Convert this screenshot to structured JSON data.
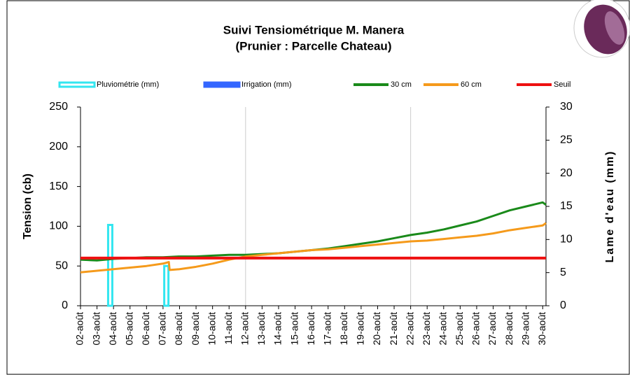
{
  "chart_data": {
    "type": "line",
    "title": "Suivi Tensiométrique M. Manera",
    "subtitle": "(Prunier : Parcelle Chateau)",
    "y_label": "Tension (cb)",
    "y2_label": "Lame d'eau (mm)",
    "xlim": [
      2,
      30.2
    ],
    "xticks": [
      {
        "value": 2,
        "label": "02-août"
      },
      {
        "value": 3,
        "label": "03-août"
      },
      {
        "value": 4,
        "label": "04-août"
      },
      {
        "value": 5,
        "label": "05-août"
      },
      {
        "value": 6,
        "label": "06-août"
      },
      {
        "value": 7,
        "label": "07-août"
      },
      {
        "value": 8,
        "label": "08-août"
      },
      {
        "value": 9,
        "label": "09-août"
      },
      {
        "value": 10,
        "label": "10-août"
      },
      {
        "value": 11,
        "label": "11-août"
      },
      {
        "value": 12,
        "label": "12-août"
      },
      {
        "value": 13,
        "label": "13-août"
      },
      {
        "value": 14,
        "label": "14-août"
      },
      {
        "value": 15,
        "label": "15-août"
      },
      {
        "value": 16,
        "label": "16-août"
      },
      {
        "value": 17,
        "label": "17-août"
      },
      {
        "value": 18,
        "label": "18-août"
      },
      {
        "value": 19,
        "label": "19-août"
      },
      {
        "value": 20,
        "label": "20-août"
      },
      {
        "value": 21,
        "label": "21-août"
      },
      {
        "value": 22,
        "label": "22-août"
      },
      {
        "value": 23,
        "label": "23-août"
      },
      {
        "value": 24,
        "label": "24-août"
      },
      {
        "value": 25,
        "label": "25-août"
      },
      {
        "value": 26,
        "label": "26-août"
      },
      {
        "value": 27,
        "label": "27-août"
      },
      {
        "value": 28,
        "label": "28-août"
      },
      {
        "value": 29,
        "label": "29-août"
      },
      {
        "value": 30,
        "label": "30-août"
      }
    ],
    "ylim": [
      0,
      250
    ],
    "yticks": [
      0,
      50,
      100,
      150,
      200,
      250
    ],
    "y2lim": [
      0,
      30
    ],
    "y2ticks": [
      0,
      5,
      10,
      15,
      20,
      25,
      30
    ],
    "series": [
      {
        "name": "Pluviométrie (mm)",
        "type": "bar",
        "axis": "y2",
        "color": "#33e6f0",
        "x": [
          3.8,
          7.2
        ],
        "values": [
          12.2,
          6
        ]
      },
      {
        "name": "Irrigation (mm)",
        "type": "bar",
        "axis": "y2",
        "color": "#3366ff",
        "x": [],
        "values": []
      },
      {
        "name": "30 cm",
        "type": "line",
        "color": "#1a8a1a",
        "x": [
          2,
          3,
          4,
          5,
          6,
          7,
          8,
          9,
          10,
          11,
          12,
          13,
          14,
          15,
          16,
          17,
          18,
          19,
          20,
          21,
          22,
          23,
          24,
          25,
          26,
          27,
          28,
          29,
          30,
          30.2
        ],
        "values": [
          58,
          57,
          59,
          60,
          61,
          61,
          62,
          62,
          63,
          64,
          64,
          65,
          66,
          68,
          70,
          72,
          75,
          78,
          81,
          85,
          89,
          92,
          96,
          101,
          106,
          113,
          120,
          125,
          130,
          127
        ]
      },
      {
        "name": "60 cm",
        "type": "line",
        "color": "#f59a1b",
        "x": [
          2,
          3,
          4,
          5,
          6,
          7,
          7.35,
          7.4,
          8,
          9,
          10,
          11,
          12,
          13,
          14,
          15,
          16,
          17,
          18,
          19,
          20,
          21,
          22,
          23,
          24,
          25,
          26,
          27,
          28,
          29,
          30,
          30.2
        ],
        "values": [
          42,
          44,
          46,
          48,
          50,
          53,
          55,
          45,
          46,
          49,
          53,
          58,
          62,
          64,
          66,
          68,
          70,
          71,
          73,
          75,
          77,
          79,
          81,
          82,
          84,
          86,
          88,
          91,
          95,
          98,
          101,
          104
        ]
      },
      {
        "name": "Seuil",
        "type": "line",
        "color": "#ee1111",
        "x": [
          2,
          30.2
        ],
        "values": [
          60,
          60
        ]
      }
    ]
  }
}
